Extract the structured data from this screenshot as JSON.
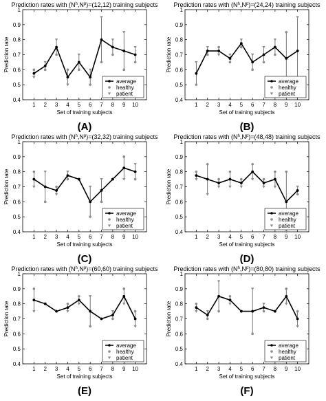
{
  "shared": {
    "xlabel": "Set of training subjects",
    "ylabel": "Prediction rate",
    "legend": [
      "average",
      "healthy",
      "patient"
    ]
  },
  "colors": {
    "average": "#000000",
    "healthy": "#8c8c8c",
    "patient": "#8c8c8c"
  },
  "chart_data": [
    {
      "type": "line",
      "title": "Prediction rates with (N^h,N^p)=(12,12) training subjects",
      "title_parts": {
        "pre": "Prediction rates with (N",
        "sup1": "h",
        "mid": ",N",
        "sup2": "p",
        "post": ")=(12,12) training subjects"
      },
      "caption": "(A)",
      "xlabel": "Set of training subjects",
      "ylabel": "Prediction rate",
      "x": [
        1,
        2,
        3,
        4,
        5,
        6,
        7,
        8,
        9,
        10
      ],
      "xlim": [
        0,
        11
      ],
      "ylim": [
        0.4,
        1.0
      ],
      "yticks": [
        0.4,
        0.5,
        0.6,
        0.7,
        0.8,
        0.9,
        1
      ],
      "legend_position": "lower-right",
      "grid": false,
      "series": [
        {
          "name": "average",
          "values": [
            0.575,
            0.625,
            0.75,
            0.55,
            0.65,
            0.55,
            0.8,
            0.75,
            0.725,
            0.7
          ]
        },
        {
          "name": "healthy",
          "values": [
            0.6,
            0.6,
            0.7,
            0.6,
            0.6,
            0.5,
            0.65,
            0.7,
            0.6,
            0.65
          ]
        },
        {
          "name": "patient",
          "values": [
            0.55,
            0.65,
            0.8,
            0.5,
            0.7,
            0.6,
            0.95,
            0.8,
            0.85,
            0.75
          ]
        }
      ]
    },
    {
      "type": "line",
      "title": "Prediction rates with (N^h,N^p)=(24,24) training subjects",
      "title_parts": {
        "pre": "Prediction rates with (N",
        "sup1": "h",
        "mid": ",N",
        "sup2": "p",
        "post": ")=(24,24) training subjects"
      },
      "caption": "(B)",
      "xlabel": "Set of training subjects",
      "ylabel": "Prediction rate",
      "x": [
        1,
        2,
        3,
        4,
        5,
        6,
        7,
        8,
        9,
        10
      ],
      "xlim": [
        0,
        11
      ],
      "ylim": [
        0.4,
        1.0
      ],
      "yticks": [
        0.4,
        0.5,
        0.6,
        0.7,
        0.8,
        0.9,
        1
      ],
      "legend_position": "lower-right",
      "grid": false,
      "series": [
        {
          "name": "average",
          "values": [
            0.575,
            0.725,
            0.725,
            0.675,
            0.775,
            0.65,
            0.7,
            0.75,
            0.675,
            0.725
          ]
        },
        {
          "name": "healthy",
          "values": [
            0.5,
            0.7,
            0.75,
            0.65,
            0.75,
            0.6,
            0.65,
            0.7,
            0.85,
            0.5
          ]
        },
        {
          "name": "patient",
          "values": [
            0.65,
            0.75,
            0.7,
            0.7,
            0.8,
            0.7,
            0.75,
            0.8,
            0.5,
            0.95
          ]
        }
      ]
    },
    {
      "type": "line",
      "title": "Prediction rates with (N^h,N^p)=(32,32) training subjects",
      "title_parts": {
        "pre": "Prediction rates with (N",
        "sup1": "h",
        "mid": ",N",
        "sup2": "p",
        "post": ")=(32,32) training subjects"
      },
      "caption": "(C)",
      "xlabel": "Set of training subjects",
      "ylabel": "Prediction rate",
      "x": [
        1,
        2,
        3,
        4,
        5,
        6,
        7,
        8,
        9,
        10
      ],
      "xlim": [
        0,
        11
      ],
      "ylim": [
        0.4,
        1.0
      ],
      "yticks": [
        0.4,
        0.5,
        0.6,
        0.7,
        0.8,
        0.9,
        1
      ],
      "legend_position": "lower-right",
      "grid": false,
      "series": [
        {
          "name": "average",
          "values": [
            0.75,
            0.7,
            0.675,
            0.775,
            0.75,
            0.6,
            0.675,
            0.75,
            0.825,
            0.8
          ]
        },
        {
          "name": "healthy",
          "values": [
            0.8,
            0.6,
            0.7,
            0.75,
            0.75,
            0.5,
            0.6,
            0.75,
            0.9,
            0.75
          ]
        },
        {
          "name": "patient",
          "values": [
            0.7,
            0.8,
            0.65,
            0.8,
            0.75,
            0.7,
            0.75,
            0.75,
            0.75,
            0.85
          ]
        }
      ]
    },
    {
      "type": "line",
      "title": "Prediction rates with (N^h,N^p)=(48,48) training subjects",
      "title_parts": {
        "pre": "Prediction rates with (N",
        "sup1": "h",
        "mid": ",N",
        "sup2": "p",
        "post": ")=(48,48) training subjects"
      },
      "caption": "(D)",
      "xlabel": "Set of training subjects",
      "ylabel": "Prediction rate",
      "x": [
        1,
        2,
        3,
        4,
        5,
        6,
        7,
        8,
        9,
        10
      ],
      "xlim": [
        0,
        11
      ],
      "ylim": [
        0.4,
        1.0
      ],
      "yticks": [
        0.4,
        0.5,
        0.6,
        0.7,
        0.8,
        0.9,
        1
      ],
      "legend_position": "lower-right",
      "grid": false,
      "series": [
        {
          "name": "average",
          "values": [
            0.775,
            0.75,
            0.725,
            0.75,
            0.725,
            0.8,
            0.725,
            0.75,
            0.6,
            0.675
          ]
        },
        {
          "name": "healthy",
          "values": [
            0.8,
            0.85,
            0.75,
            0.8,
            0.75,
            0.85,
            0.75,
            0.8,
            0.8,
            0.65
          ]
        },
        {
          "name": "patient",
          "values": [
            0.75,
            0.65,
            0.7,
            0.7,
            0.7,
            0.75,
            0.7,
            0.7,
            0.4,
            0.7
          ]
        }
      ]
    },
    {
      "type": "line",
      "title": "Prediction rates with (N^h,N^p)=(60,60) training subjects",
      "title_parts": {
        "pre": "Prediction rates with (N",
        "sup1": "h",
        "mid": ",N",
        "sup2": "p",
        "post": ")=(60,60) training subjects"
      },
      "caption": "(E)",
      "xlabel": "Set of training subjects",
      "ylabel": "Prediction rate",
      "x": [
        1,
        2,
        3,
        4,
        5,
        6,
        7,
        8,
        9,
        10
      ],
      "xlim": [
        0,
        11
      ],
      "ylim": [
        0.4,
        1.0
      ],
      "yticks": [
        0.4,
        0.5,
        0.6,
        0.7,
        0.8,
        0.9,
        1
      ],
      "legend_position": "lower-right",
      "grid": false,
      "series": [
        {
          "name": "average",
          "values": [
            0.825,
            0.8,
            0.75,
            0.775,
            0.825,
            0.75,
            0.7,
            0.725,
            0.85,
            0.7
          ]
        },
        {
          "name": "healthy",
          "values": [
            0.9,
            0.8,
            0.75,
            0.8,
            0.85,
            0.65,
            0.7,
            0.7,
            0.9,
            0.75
          ]
        },
        {
          "name": "patient",
          "values": [
            0.75,
            0.8,
            0.75,
            0.75,
            0.8,
            0.85,
            0.7,
            0.75,
            0.8,
            0.65
          ]
        }
      ]
    },
    {
      "type": "line",
      "title": "Prediction rates with (N^h,N^p)=(80,80) training subjects",
      "title_parts": {
        "pre": "Prediction rates with (N",
        "sup1": "h",
        "mid": ",N",
        "sup2": "p",
        "post": ")=(80,80) training subjects"
      },
      "caption": "(F)",
      "xlabel": "Set of training subjects",
      "ylabel": "Prediction rate",
      "x": [
        1,
        2,
        3,
        4,
        5,
        6,
        7,
        8,
        9,
        10
      ],
      "xlim": [
        0,
        11
      ],
      "ylim": [
        0.4,
        1.0
      ],
      "yticks": [
        0.4,
        0.5,
        0.6,
        0.7,
        0.8,
        0.9,
        1
      ],
      "legend_position": "lower-right",
      "grid": false,
      "series": [
        {
          "name": "average",
          "values": [
            0.775,
            0.725,
            0.85,
            0.825,
            0.75,
            0.75,
            0.775,
            0.75,
            0.85,
            0.7
          ]
        },
        {
          "name": "healthy",
          "values": [
            0.8,
            0.7,
            0.75,
            0.85,
            0.75,
            0.6,
            0.75,
            0.75,
            0.9,
            0.75
          ]
        },
        {
          "name": "patient",
          "values": [
            0.75,
            0.75,
            0.95,
            0.8,
            0.75,
            0.9,
            0.8,
            0.75,
            0.8,
            0.65
          ]
        }
      ]
    }
  ]
}
